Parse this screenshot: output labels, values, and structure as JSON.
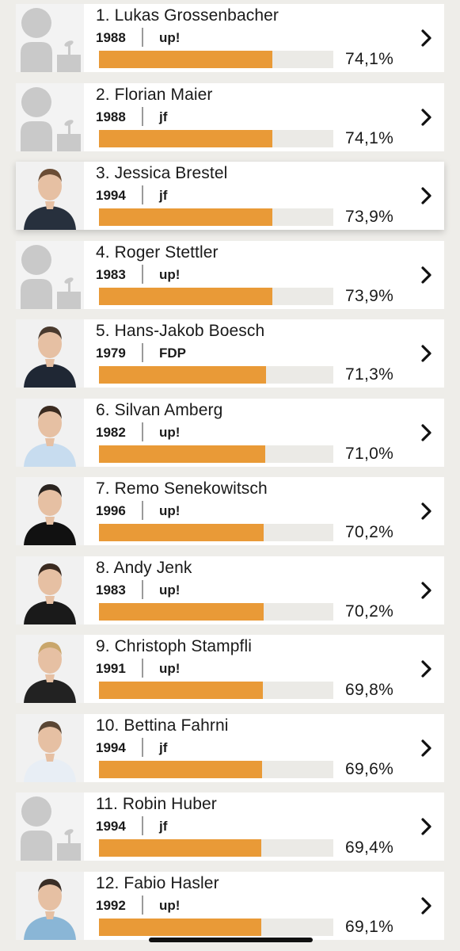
{
  "candidates": [
    {
      "rank_name": "1. Lukas Grossenbacher",
      "year": "1988",
      "party": "up!",
      "percent_text": "74,1%",
      "percent": 74.1,
      "photo": "placeholder-icon",
      "highlight": false
    },
    {
      "rank_name": "2. Florian Maier",
      "year": "1988",
      "party": "jf",
      "percent_text": "74,1%",
      "percent": 74.1,
      "photo": "placeholder-icon",
      "highlight": false
    },
    {
      "rank_name": "3. Jessica Brestel",
      "year": "1994",
      "party": "jf",
      "percent_text": "73,9%",
      "percent": 73.9,
      "photo": "portrait-photo",
      "highlight": true
    },
    {
      "rank_name": "4. Roger Stettler",
      "year": "1983",
      "party": "up!",
      "percent_text": "73,9%",
      "percent": 73.9,
      "photo": "placeholder-icon",
      "highlight": false
    },
    {
      "rank_name": "5. Hans-Jakob Boesch",
      "year": "1979",
      "party": "FDP",
      "percent_text": "71,3%",
      "percent": 71.3,
      "photo": "portrait-photo",
      "highlight": false
    },
    {
      "rank_name": "6. Silvan Amberg",
      "year": "1982",
      "party": "up!",
      "percent_text": "71,0%",
      "percent": 71.0,
      "photo": "portrait-photo",
      "highlight": false
    },
    {
      "rank_name": "7. Remo Senekowitsch",
      "year": "1996",
      "party": "up!",
      "percent_text": "70,2%",
      "percent": 70.2,
      "photo": "portrait-photo",
      "highlight": false
    },
    {
      "rank_name": "8. Andy Jenk",
      "year": "1983",
      "party": "up!",
      "percent_text": "70,2%",
      "percent": 70.2,
      "photo": "portrait-photo",
      "highlight": false
    },
    {
      "rank_name": "9. Christoph Stampfli",
      "year": "1991",
      "party": "up!",
      "percent_text": "69,8%",
      "percent": 69.8,
      "photo": "portrait-photo",
      "highlight": false
    },
    {
      "rank_name": "10. Bettina Fahrni",
      "year": "1994",
      "party": "jf",
      "percent_text": "69,6%",
      "percent": 69.6,
      "photo": "portrait-photo",
      "highlight": false
    },
    {
      "rank_name": "11. Robin Huber",
      "year": "1994",
      "party": "jf",
      "percent_text": "69,4%",
      "percent": 69.4,
      "photo": "placeholder-icon",
      "highlight": false
    },
    {
      "rank_name": "12. Fabio Hasler",
      "year": "1992",
      "party": "up!",
      "percent_text": "69,1%",
      "percent": 69.1,
      "photo": "portrait-photo",
      "highlight": false
    }
  ],
  "colors": {
    "bar_fill": "#e99a37",
    "bar_track": "#ebeae6",
    "background": "#eeede9",
    "placeholder": "#c9c9c9"
  },
  "icons": {
    "row_action": "chevron-right-icon"
  }
}
